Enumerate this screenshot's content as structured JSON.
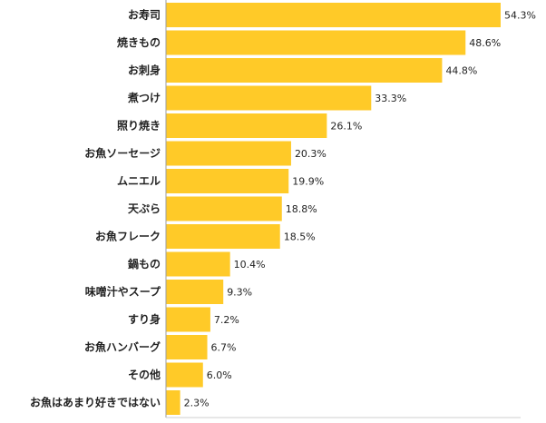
{
  "chart_data": {
    "type": "bar",
    "orientation": "horizontal",
    "title": "",
    "xlabel": "",
    "ylabel": "",
    "xlim": [
      0,
      54.3
    ],
    "grid": false,
    "legend": "none",
    "bar_color": "#FFCA28",
    "axis_color": "#9e9e9e",
    "label_color": "#222222",
    "value_suffix": "%",
    "categories": [
      "お寿司",
      "焼きもの",
      "お刺身",
      "煮つけ",
      "照り焼き",
      "お魚ソーセージ",
      "ムニエル",
      "天ぷら",
      "お魚フレーク",
      "鍋もの",
      "味噌汁やスープ",
      "すり身",
      "お魚ハンバーグ",
      "その他",
      "お魚はあまり好きではない"
    ],
    "values": [
      54.3,
      48.6,
      44.8,
      33.3,
      26.1,
      20.3,
      19.9,
      18.8,
      18.5,
      10.4,
      9.3,
      7.2,
      6.7,
      6.0,
      2.3
    ],
    "value_labels": [
      "54.3%",
      "48.6%",
      "44.8%",
      "33.3%",
      "26.1%",
      "20.3%",
      "19.9%",
      "18.8%",
      "18.5%",
      "10.4%",
      "9.3%",
      "7.2%",
      "6.7%",
      "6.0%",
      "2.3%"
    ]
  }
}
